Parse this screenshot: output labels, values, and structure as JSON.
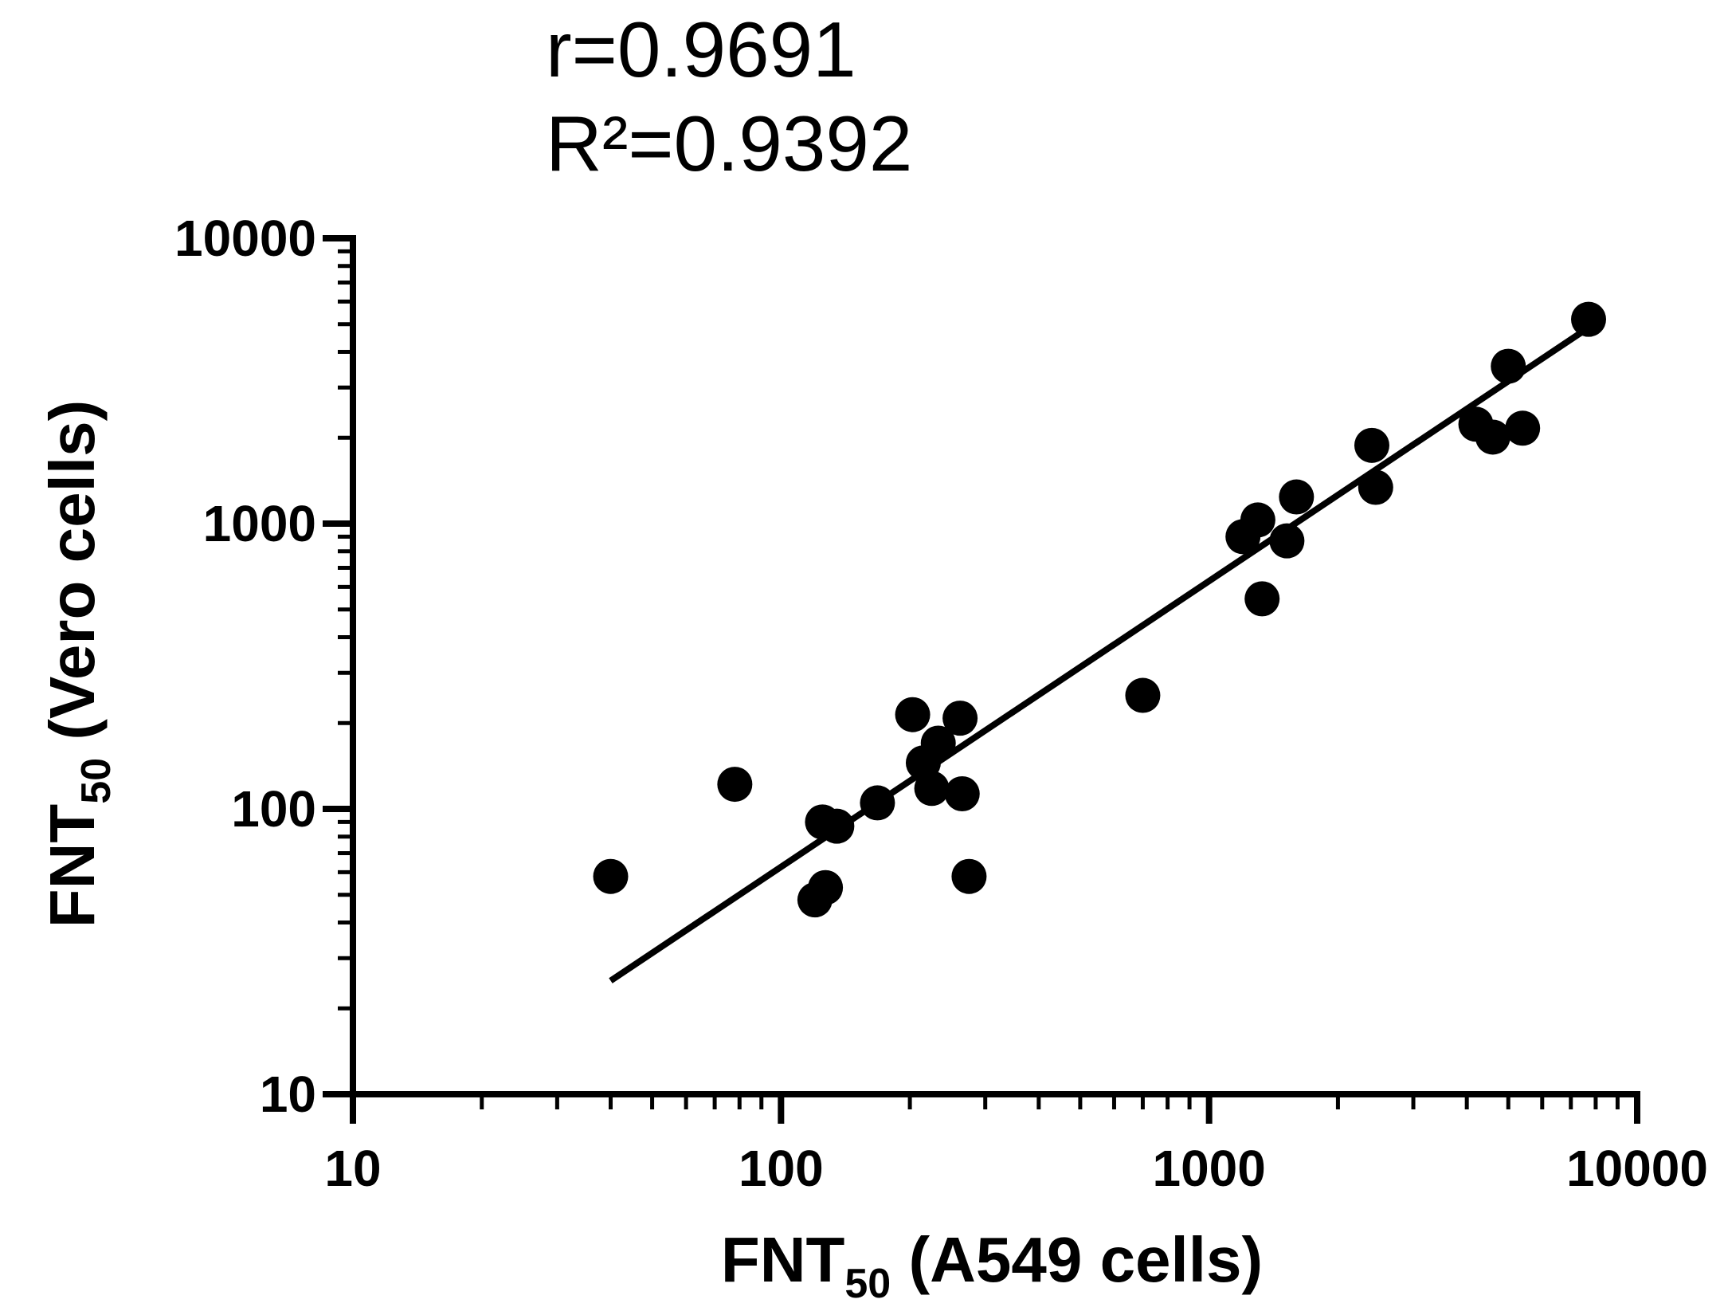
{
  "chart_data": {
    "type": "scatter",
    "annotations": [
      "r=0.9691",
      "R²=0.9392"
    ],
    "xlabel": {
      "main": "FNT",
      "sub": "50",
      "rest": " (A549 cells)"
    },
    "ylabel": {
      "main": "FNT",
      "sub": "50",
      "rest": " (Vero cells)"
    },
    "x_scale": "log",
    "y_scale": "log",
    "xlim": [
      10,
      10000
    ],
    "ylim": [
      10,
      10000
    ],
    "x_ticks": [
      "10",
      "100",
      "1000",
      "10000"
    ],
    "y_ticks": [
      "10",
      "100",
      "1000",
      "10000"
    ],
    "grid": false,
    "points": [
      {
        "x": 40,
        "y": 58
      },
      {
        "x": 78,
        "y": 122
      },
      {
        "x": 120,
        "y": 48
      },
      {
        "x": 125,
        "y": 90
      },
      {
        "x": 127,
        "y": 53
      },
      {
        "x": 135,
        "y": 87
      },
      {
        "x": 168,
        "y": 105
      },
      {
        "x": 203,
        "y": 214
      },
      {
        "x": 215,
        "y": 145
      },
      {
        "x": 225,
        "y": 118
      },
      {
        "x": 233,
        "y": 170
      },
      {
        "x": 262,
        "y": 208
      },
      {
        "x": 265,
        "y": 113
      },
      {
        "x": 275,
        "y": 58
      },
      {
        "x": 700,
        "y": 250
      },
      {
        "x": 1200,
        "y": 900
      },
      {
        "x": 1300,
        "y": 1030
      },
      {
        "x": 1330,
        "y": 545
      },
      {
        "x": 1520,
        "y": 870
      },
      {
        "x": 1600,
        "y": 1240
      },
      {
        "x": 2400,
        "y": 1880
      },
      {
        "x": 2450,
        "y": 1340
      },
      {
        "x": 4200,
        "y": 2230
      },
      {
        "x": 4600,
        "y": 2010
      },
      {
        "x": 5000,
        "y": 3560
      },
      {
        "x": 5400,
        "y": 2160
      },
      {
        "x": 7700,
        "y": 5200
      }
    ],
    "fit_line": {
      "x": [
        40,
        7600
      ],
      "y": [
        25,
        4800
      ]
    }
  }
}
